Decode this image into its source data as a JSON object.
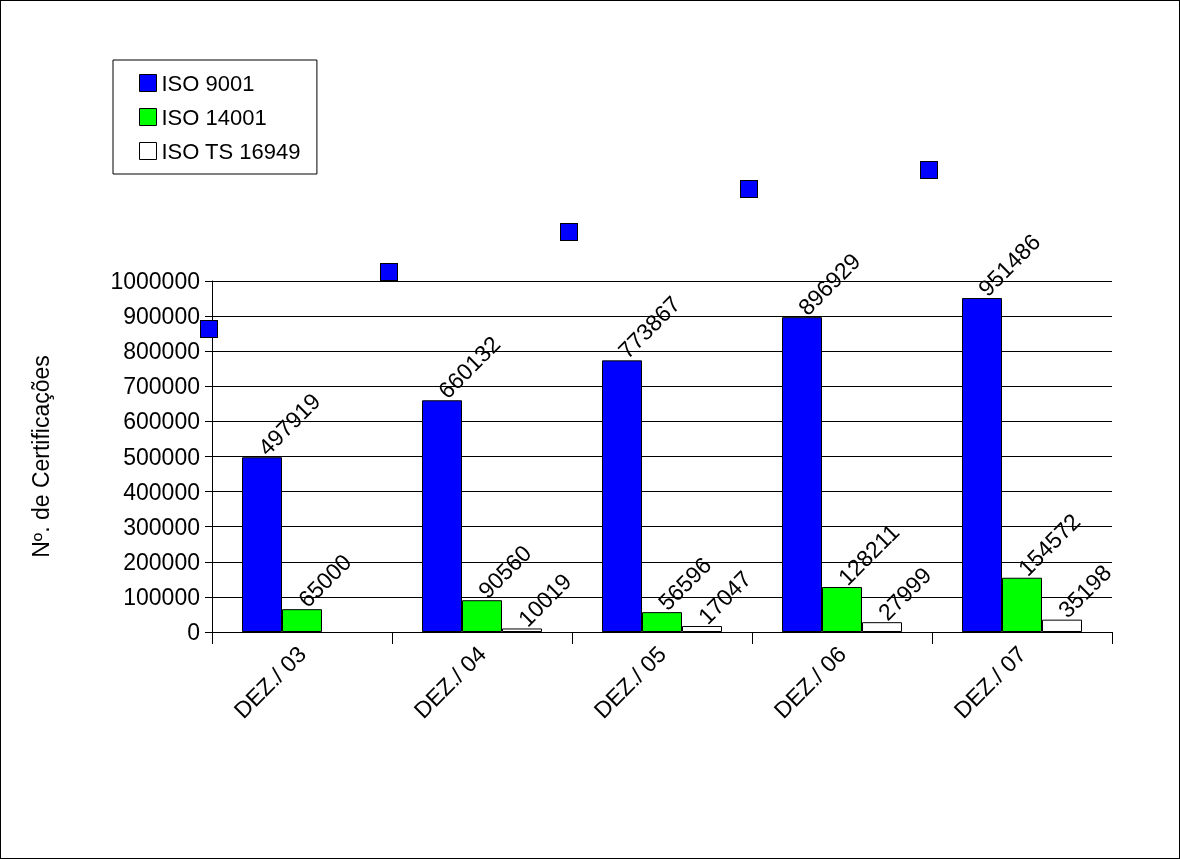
{
  "chart_data": {
    "type": "bar",
    "categories": [
      "DEZ./ 03",
      "DEZ./ 04",
      "DEZ./ 05",
      "DEZ./ 06",
      "DEZ./ 07"
    ],
    "ylabel": "Nº. de Certificações",
    "series": [
      {
        "name": "ISO 9001",
        "color": "#0000ff",
        "values": [
          497919,
          660132,
          773867,
          896929,
          951486
        ]
      },
      {
        "name": "ISO 14001",
        "color": "#00ff00",
        "values": [
          65000,
          90560,
          56596,
          128211,
          154572
        ]
      },
      {
        "name": "ISO TS 16949",
        "color": "#ffffff",
        "values": [
          null,
          10019,
          17047,
          27999,
          35198
        ]
      }
    ],
    "ylim": [
      0,
      1000000
    ],
    "yticks": [
      0,
      100000,
      200000,
      300000,
      400000,
      500000,
      600000,
      700000,
      800000,
      900000,
      1000000
    ],
    "grid": "y",
    "legend": "top left",
    "data_labels": true
  }
}
